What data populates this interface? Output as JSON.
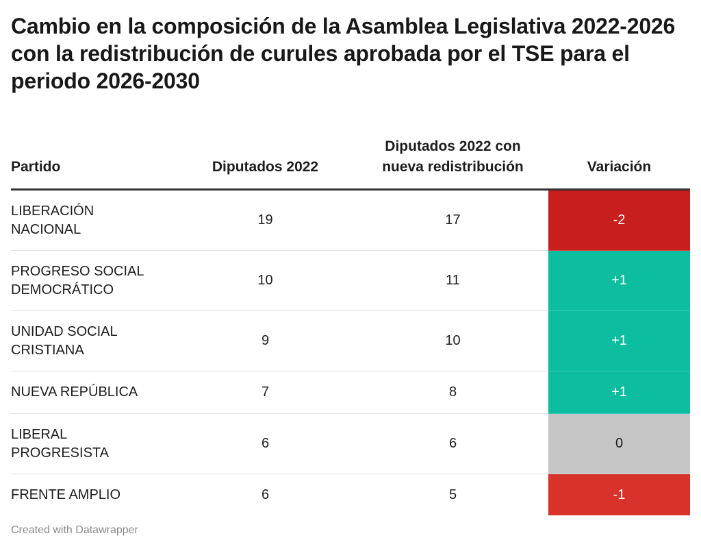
{
  "title": "Cambio en la composición de la Asamblea Legislativa 2022-2026 con la redistribución de curules aprobada por el TSE para el periodo 2026-2030",
  "colors": {
    "negative_strong": "#c91e1e",
    "negative": "#d9322b",
    "positive": "#0dbd9f",
    "neutral": "#c6c6c6"
  },
  "chart_data": {
    "type": "table",
    "columns": [
      {
        "key": "party",
        "label_lines": [
          "Partido"
        ]
      },
      {
        "key": "d2022",
        "label_lines": [
          "Diputados 2022"
        ]
      },
      {
        "key": "dnew",
        "label_lines": [
          "Diputados 2022 con",
          "nueva redistribución"
        ]
      },
      {
        "key": "var",
        "label_lines": [
          "Variación"
        ]
      }
    ],
    "rows": [
      {
        "party_lines": [
          "LIBERACIÓN",
          "NACIONAL"
        ],
        "d2022": "19",
        "dnew": "17",
        "var": "-2",
        "var_value": -2
      },
      {
        "party_lines": [
          "PROGRESO SOCIAL",
          "DEMOCRÁTICO"
        ],
        "d2022": "10",
        "dnew": "11",
        "var": "+1",
        "var_value": 1
      },
      {
        "party_lines": [
          "UNIDAD SOCIAL",
          "CRISTIANA"
        ],
        "d2022": "9",
        "dnew": "10",
        "var": "+1",
        "var_value": 1
      },
      {
        "party_lines": [
          "NUEVA REPÚBLICA"
        ],
        "d2022": "7",
        "dnew": "8",
        "var": "+1",
        "var_value": 1
      },
      {
        "party_lines": [
          "LIBERAL",
          "PROGRESISTA"
        ],
        "d2022": "6",
        "dnew": "6",
        "var": "0",
        "var_value": 0
      },
      {
        "party_lines": [
          "FRENTE AMPLIO"
        ],
        "d2022": "6",
        "dnew": "5",
        "var": "-1",
        "var_value": -1
      }
    ]
  },
  "footer": "Created with Datawrapper"
}
